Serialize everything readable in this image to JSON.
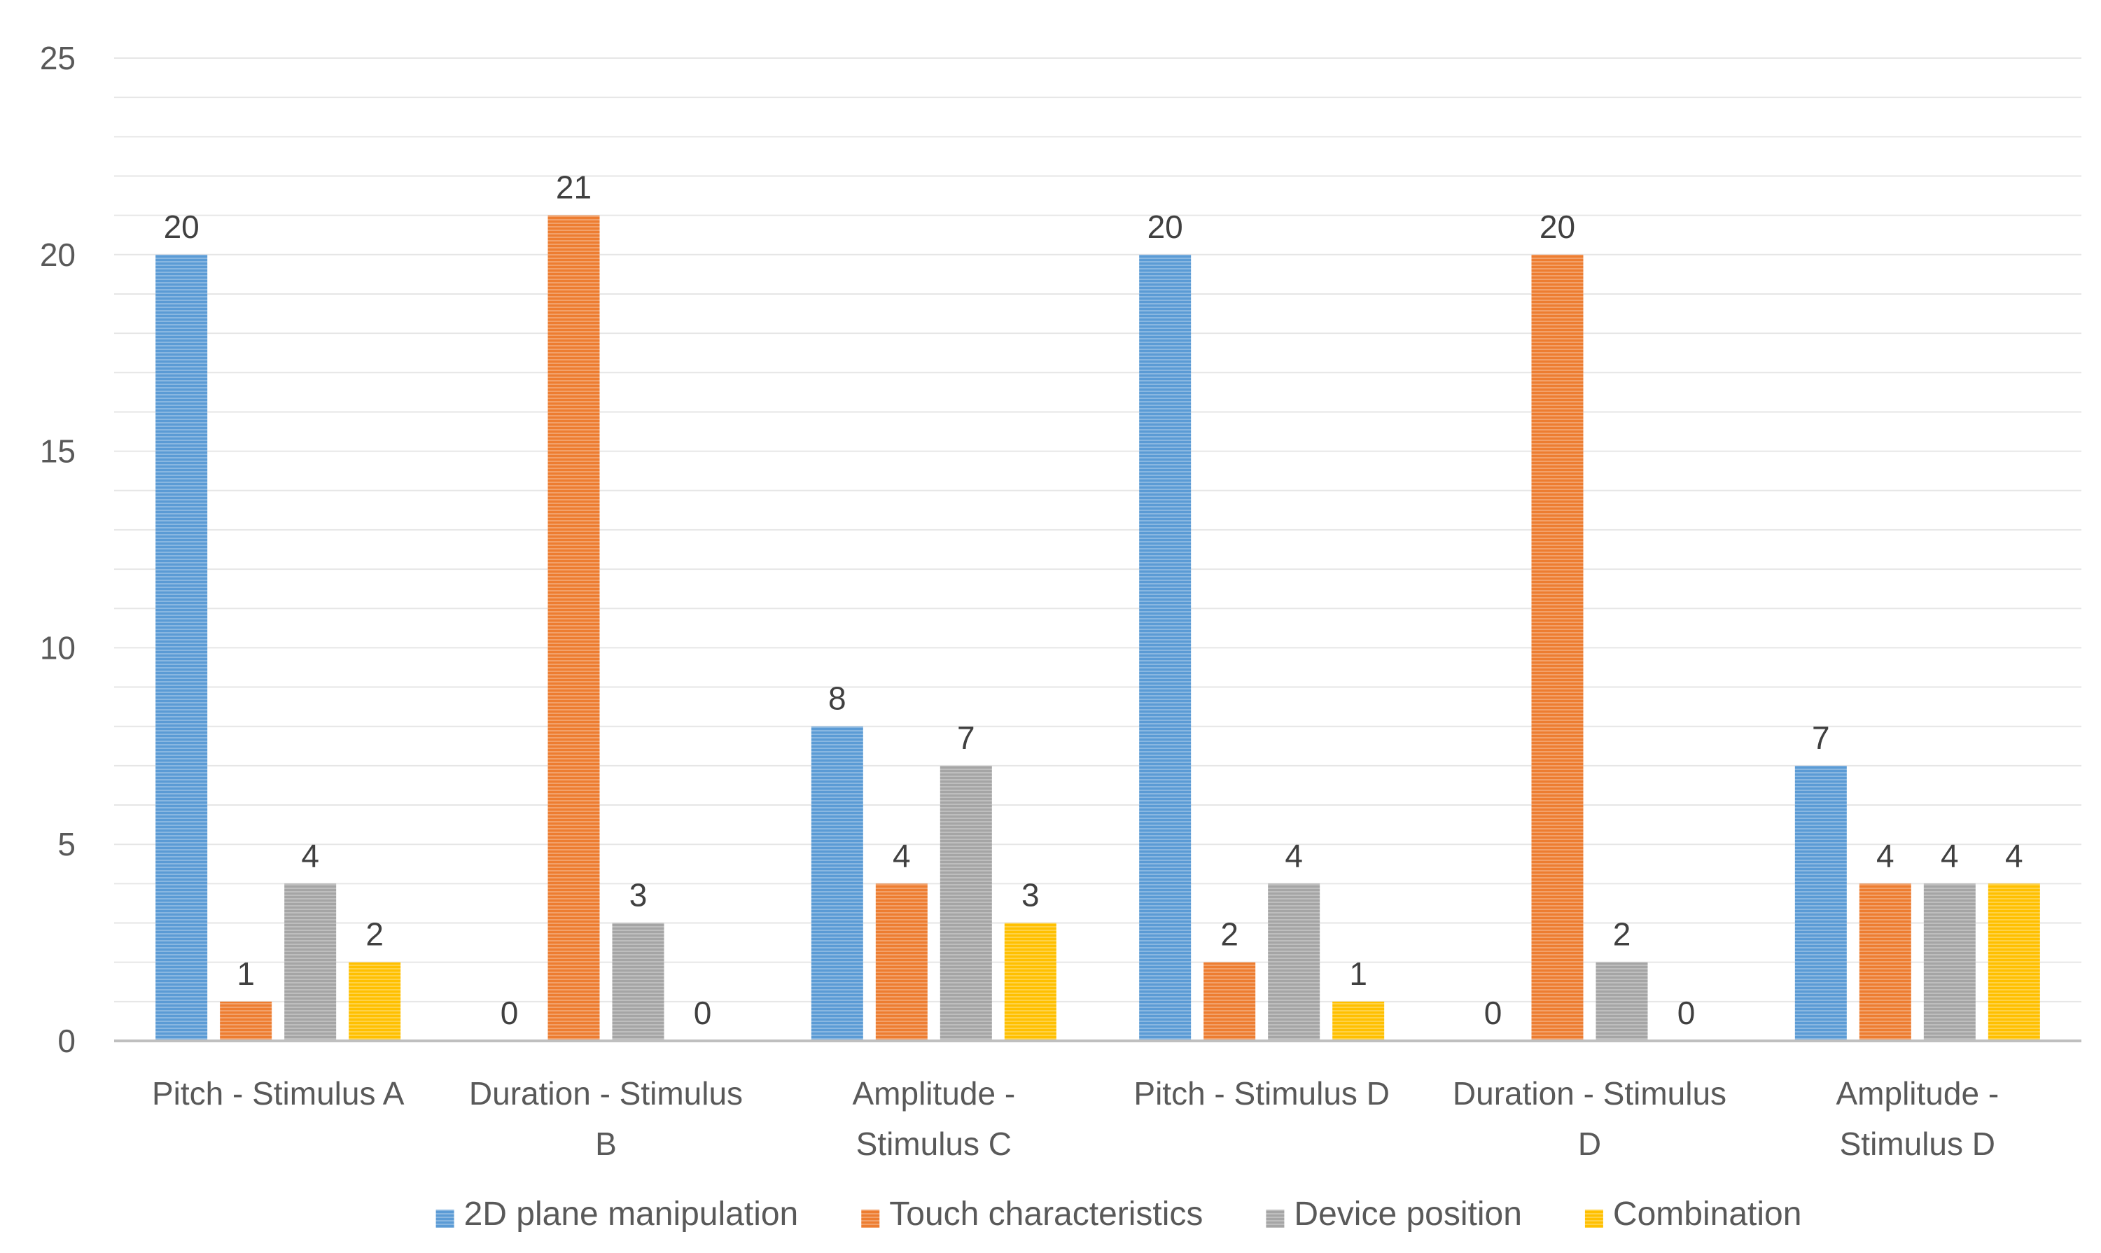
{
  "chart_data": {
    "type": "bar",
    "title": "",
    "xlabel": "",
    "ylabel": "",
    "ylim": [
      0,
      25
    ],
    "yticks": [
      0,
      5,
      10,
      15,
      20,
      25
    ],
    "minor_grid_step": 1,
    "grid": true,
    "legend_position": "bottom",
    "categories": [
      [
        "Pitch - Stimulus A"
      ],
      [
        "Duration - Stimulus",
        "B"
      ],
      [
        "Amplitude -",
        "Stimulus C"
      ],
      [
        "Pitch - Stimulus D"
      ],
      [
        "Duration - Stimulus",
        "D"
      ],
      [
        "Amplitude -",
        "Stimulus D"
      ]
    ],
    "series": [
      {
        "name": "2D plane manipulation",
        "color": "#5B9BD5",
        "values": [
          20,
          0,
          8,
          20,
          0,
          7
        ]
      },
      {
        "name": "Touch characteristics",
        "color": "#ED7D31",
        "values": [
          1,
          21,
          4,
          2,
          20,
          4
        ]
      },
      {
        "name": "Device position",
        "color": "#A5A5A5",
        "values": [
          4,
          3,
          7,
          4,
          2,
          4
        ]
      },
      {
        "name": "Combination",
        "color": "#FFC000",
        "values": [
          2,
          0,
          3,
          1,
          0,
          4
        ]
      }
    ]
  }
}
